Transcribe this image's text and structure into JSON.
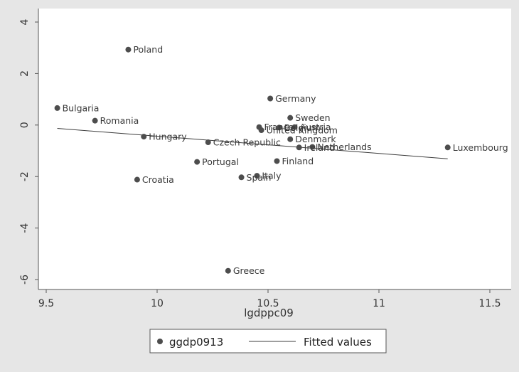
{
  "chart_data": {
    "type": "scatter",
    "xlabel": "lgdppc09",
    "ylabel": "",
    "xlim": [
      9.5,
      11.5
    ],
    "ylim": [
      -6,
      4
    ],
    "xticks": [
      9.5,
      10,
      10.5,
      11,
      11.5
    ],
    "yticks": [
      -6,
      -4,
      -2,
      0,
      2,
      4
    ],
    "grid": false,
    "legend_placement": "bottom",
    "colors": {
      "point": "#4d4d4d",
      "line": "#3c3c3c",
      "background": "#e6e6e6",
      "plot": "#ffffff"
    },
    "series": [
      {
        "name": "ggdp0913",
        "kind": "scatter",
        "points": [
          {
            "label": "Poland",
            "x": 9.87,
            "y": 2.93
          },
          {
            "label": "Bulgaria",
            "x": 9.55,
            "y": 0.66
          },
          {
            "label": "Romania",
            "x": 9.72,
            "y": 0.17
          },
          {
            "label": "Hungary",
            "x": 9.94,
            "y": -0.45
          },
          {
            "label": "Czech Republic",
            "x": 10.23,
            "y": -0.67
          },
          {
            "label": "Portugal",
            "x": 10.18,
            "y": -1.43
          },
          {
            "label": "Croatia",
            "x": 9.91,
            "y": -2.12
          },
          {
            "label": "Spain",
            "x": 10.38,
            "y": -2.03
          },
          {
            "label": "Italy",
            "x": 10.45,
            "y": -1.97
          },
          {
            "label": "Greece",
            "x": 10.32,
            "y": -5.66
          },
          {
            "label": "Germany",
            "x": 10.51,
            "y": 1.03
          },
          {
            "label": "France",
            "x": 10.46,
            "y": -0.08
          },
          {
            "label": "United Kingdom",
            "x": 10.47,
            "y": -0.2
          },
          {
            "label": "Belgium",
            "x": 10.55,
            "y": -0.1
          },
          {
            "label": "Austria",
            "x": 10.62,
            "y": -0.08
          },
          {
            "label": "Sweden",
            "x": 10.6,
            "y": 0.28
          },
          {
            "label": "Denmark",
            "x": 10.6,
            "y": -0.55
          },
          {
            "label": "Ireland",
            "x": 10.64,
            "y": -0.87
          },
          {
            "label": "Netherlands",
            "x": 10.7,
            "y": -0.85
          },
          {
            "label": "Finland",
            "x": 10.54,
            "y": -1.4
          },
          {
            "label": "Luxembourg",
            "x": 11.31,
            "y": -0.87
          }
        ]
      },
      {
        "name": "Fitted values",
        "kind": "line",
        "points": [
          {
            "x": 9.55,
            "y": -0.13
          },
          {
            "x": 11.31,
            "y": -1.31
          }
        ]
      }
    ]
  }
}
